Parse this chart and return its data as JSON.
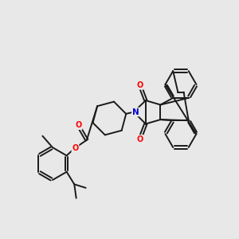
{
  "background_color": "#e8e8e8",
  "bond_color": "#1a1a1a",
  "atom_colors": {
    "O": "#ff0000",
    "N": "#0000cc"
  },
  "lw": 1.4,
  "dbo": 0.055,
  "figsize": [
    3.0,
    3.0
  ],
  "dpi": 100
}
